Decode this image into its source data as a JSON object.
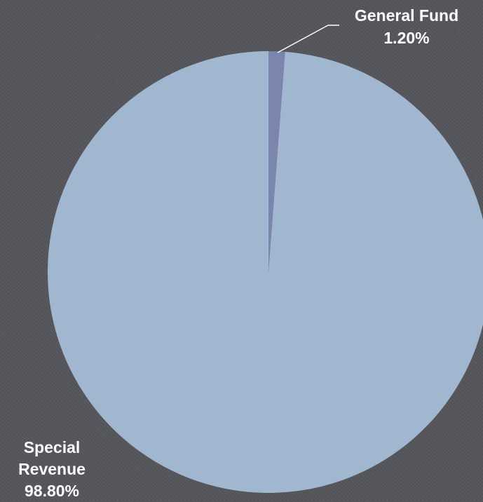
{
  "chart_data": {
    "type": "pie",
    "title": "",
    "slices": [
      {
        "label": "General Fund",
        "value": 1.2,
        "value_label": "1.20%",
        "color": "#7a86ad"
      },
      {
        "label": "Special Revenue",
        "value": 98.8,
        "value_label": "98.80%",
        "color": "#a0b7cf"
      }
    ],
    "start_angle_deg": 0,
    "direction": "clockwise",
    "leader_line_color": "#ffffff",
    "legend": "none"
  },
  "labels": {
    "general_fund_name": "General Fund",
    "general_fund_value": "1.20%",
    "special_revenue_name_1": "Special",
    "special_revenue_name_2": "Revenue",
    "special_revenue_value": "98.80%"
  },
  "colors": {
    "background": "#55565b",
    "label_text": "#ffffff"
  }
}
